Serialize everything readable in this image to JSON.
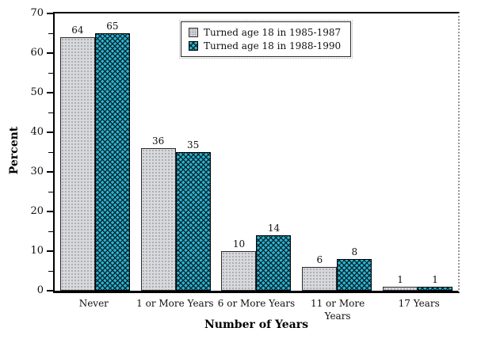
{
  "chart_data": {
    "type": "bar",
    "title": "",
    "categories": [
      "Never",
      "1 or More Years",
      "6 or More Years",
      "11 or More Years",
      "17 Years"
    ],
    "series": [
      {
        "name": "Turned age 18 in 1985-1987",
        "values": [
          64,
          36,
          10,
          6,
          1
        ],
        "color": "#d9d9d9",
        "pattern": "dots"
      },
      {
        "name": "Turned age 18 in 1988-1990",
        "values": [
          65,
          35,
          14,
          8,
          1
        ],
        "color": "#2fb4cf",
        "pattern": "crosshatch"
      }
    ],
    "xlabel": "Number of Years",
    "ylabel": "Percent",
    "ylim": [
      0,
      70
    ],
    "yticks_major": [
      0,
      10,
      20,
      30,
      40,
      50,
      60,
      70
    ],
    "yticks_minor": [
      5,
      15,
      25,
      35,
      45,
      55,
      65
    ],
    "show_value_labels": true,
    "grid": false,
    "legend_position": "inside-top-center"
  }
}
